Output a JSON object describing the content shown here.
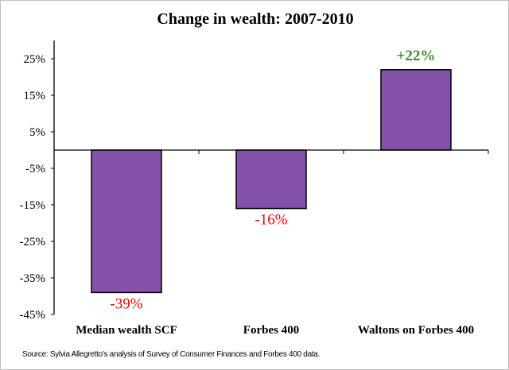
{
  "chart_data": {
    "type": "bar",
    "title": "Change in wealth: 2007-2010",
    "categories": [
      "Median wealth SCF",
      "Forbes 400",
      "Waltons on Forbes 400"
    ],
    "values": [
      -39,
      -16,
      22
    ],
    "data_labels": [
      "-39%",
      "-16%",
      "+22%"
    ],
    "ylim": [
      -45,
      30
    ],
    "yticks": [
      25,
      15,
      5,
      -5,
      -15,
      -25,
      -35,
      -45
    ],
    "ytick_labels": [
      "25%",
      "15%",
      "5%",
      "-5%",
      "-15%",
      "-25%",
      "-35%",
      "-45%"
    ],
    "grid": false,
    "legend": "none",
    "colors": {
      "bar": "#8350AA",
      "negative_label": "#FF0000",
      "positive_label": "#3A8A2E"
    }
  },
  "source": "Source: Sylvia Allegretto's analysis of Survey of Consumer Finances and Forbes 400 data."
}
